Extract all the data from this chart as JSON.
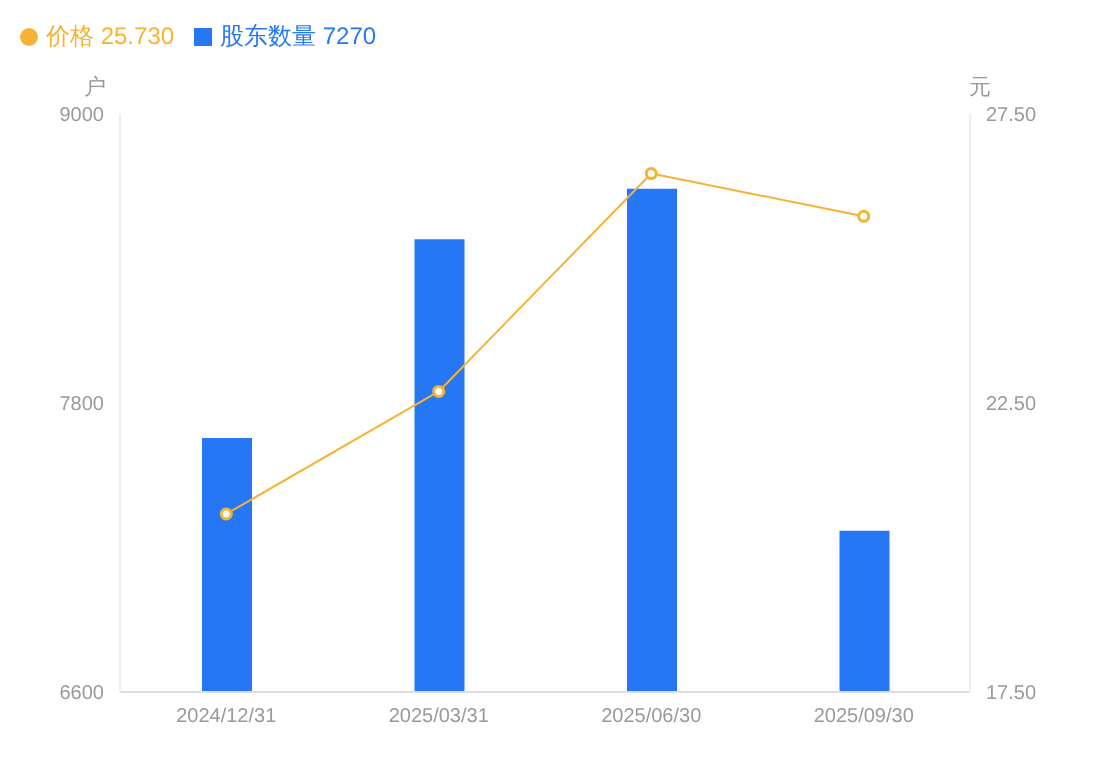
{
  "chart_data": {
    "type": "bar",
    "categories": [
      "2024/12/31",
      "2025/03/31",
      "2025/06/30",
      "2025/09/30"
    ],
    "series": [
      {
        "name": "股东数量 7270",
        "color": "#2577f6",
        "values": [
          7655,
          8480,
          8690,
          7270
        ]
      },
      {
        "name": "价格 25.730",
        "type": "line",
        "axis": "y2",
        "color": "#f5b335",
        "values": [
          20.58,
          22.7,
          26.47,
          25.73
        ]
      }
    ],
    "ylabel": "户",
    "y2label": "元",
    "ylim": [
      6600,
      9000
    ],
    "yticks": [
      6600,
      7800,
      9000
    ],
    "y2lim": [
      17.5,
      27.5
    ],
    "y2ticks": [
      {
        "value": 17.5,
        "label": "17.50"
      },
      {
        "value": 22.5,
        "label": "22.50"
      },
      {
        "value": 27.5,
        "label": "27.50"
      }
    ],
    "legend": "top left",
    "marker": "circle",
    "grid": false
  }
}
